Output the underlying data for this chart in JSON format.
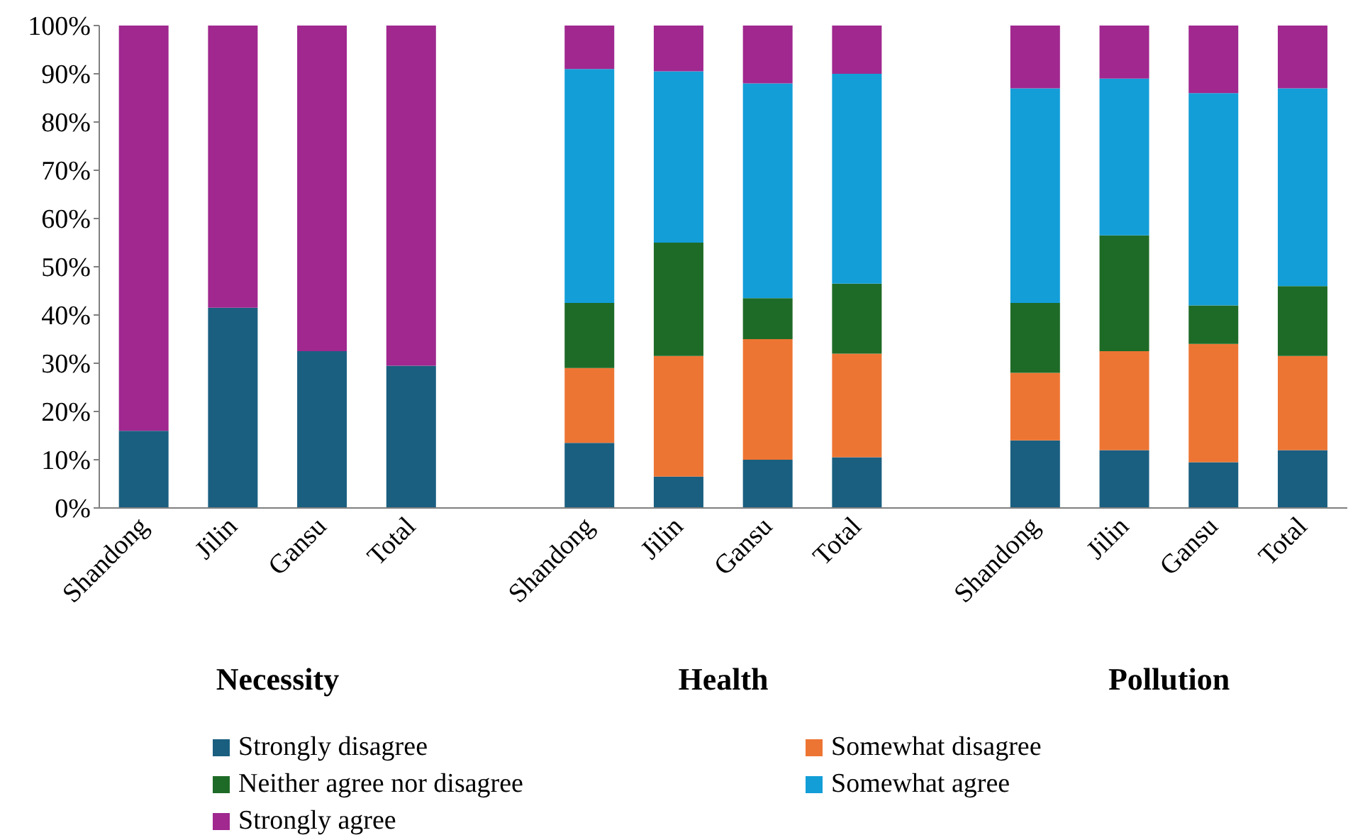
{
  "chart_data": {
    "type": "bar",
    "stacked": true,
    "categories": [
      "Shandong",
      "Jilin",
      "Gansu",
      "Total",
      null,
      "Shandong",
      "Jilin",
      "Gansu",
      "Total",
      null,
      "Shandong",
      "Jilin",
      "Gansu",
      "Total"
    ],
    "series": [
      {
        "name": "Strongly disagree",
        "color": "#1a5f80",
        "values": [
          16,
          41.5,
          32.5,
          29.5,
          null,
          13.5,
          6.5,
          10,
          10.5,
          null,
          14,
          12,
          9.5,
          12
        ]
      },
      {
        "name": "Somewhat disagree",
        "color": "#ed7533",
        "values": [
          0,
          0,
          0,
          0,
          null,
          15.5,
          25,
          25,
          21.5,
          null,
          14,
          20.5,
          24.5,
          19.5
        ]
      },
      {
        "name": "Neither agree nor disagree",
        "color": "#1e6b27",
        "values": [
          0,
          0,
          0,
          0,
          null,
          13.5,
          23.5,
          8.5,
          14.5,
          null,
          14.5,
          24,
          8,
          14.5
        ]
      },
      {
        "name": "Somewhat agree",
        "color": "#139ed8",
        "values": [
          0,
          0,
          0,
          0,
          null,
          48.5,
          35.5,
          44.5,
          43.5,
          null,
          44.5,
          32.5,
          44,
          41
        ]
      },
      {
        "name": "Strongly agree",
        "color": "#a0288f",
        "values": [
          84,
          58.5,
          67.5,
          70.5,
          null,
          9,
          9.5,
          12,
          10,
          null,
          13,
          11,
          14,
          13
        ]
      }
    ],
    "ylim": [
      0,
      100
    ],
    "yticks": [
      {
        "value": 0,
        "label": "0%"
      },
      {
        "value": 10,
        "label": "10%"
      },
      {
        "value": 20,
        "label": "20%"
      },
      {
        "value": 30,
        "label": "30%"
      },
      {
        "value": 40,
        "label": "40%"
      },
      {
        "value": 50,
        "label": "50%"
      },
      {
        "value": 60,
        "label": "60%"
      },
      {
        "value": 70,
        "label": "70%"
      },
      {
        "value": 80,
        "label": "80%"
      },
      {
        "value": 90,
        "label": "90%"
      },
      {
        "value": 100,
        "label": "100%"
      }
    ],
    "annotations": [
      "Necessity",
      "Health",
      "Pollution"
    ],
    "legend": "bottom",
    "grid": false
  }
}
